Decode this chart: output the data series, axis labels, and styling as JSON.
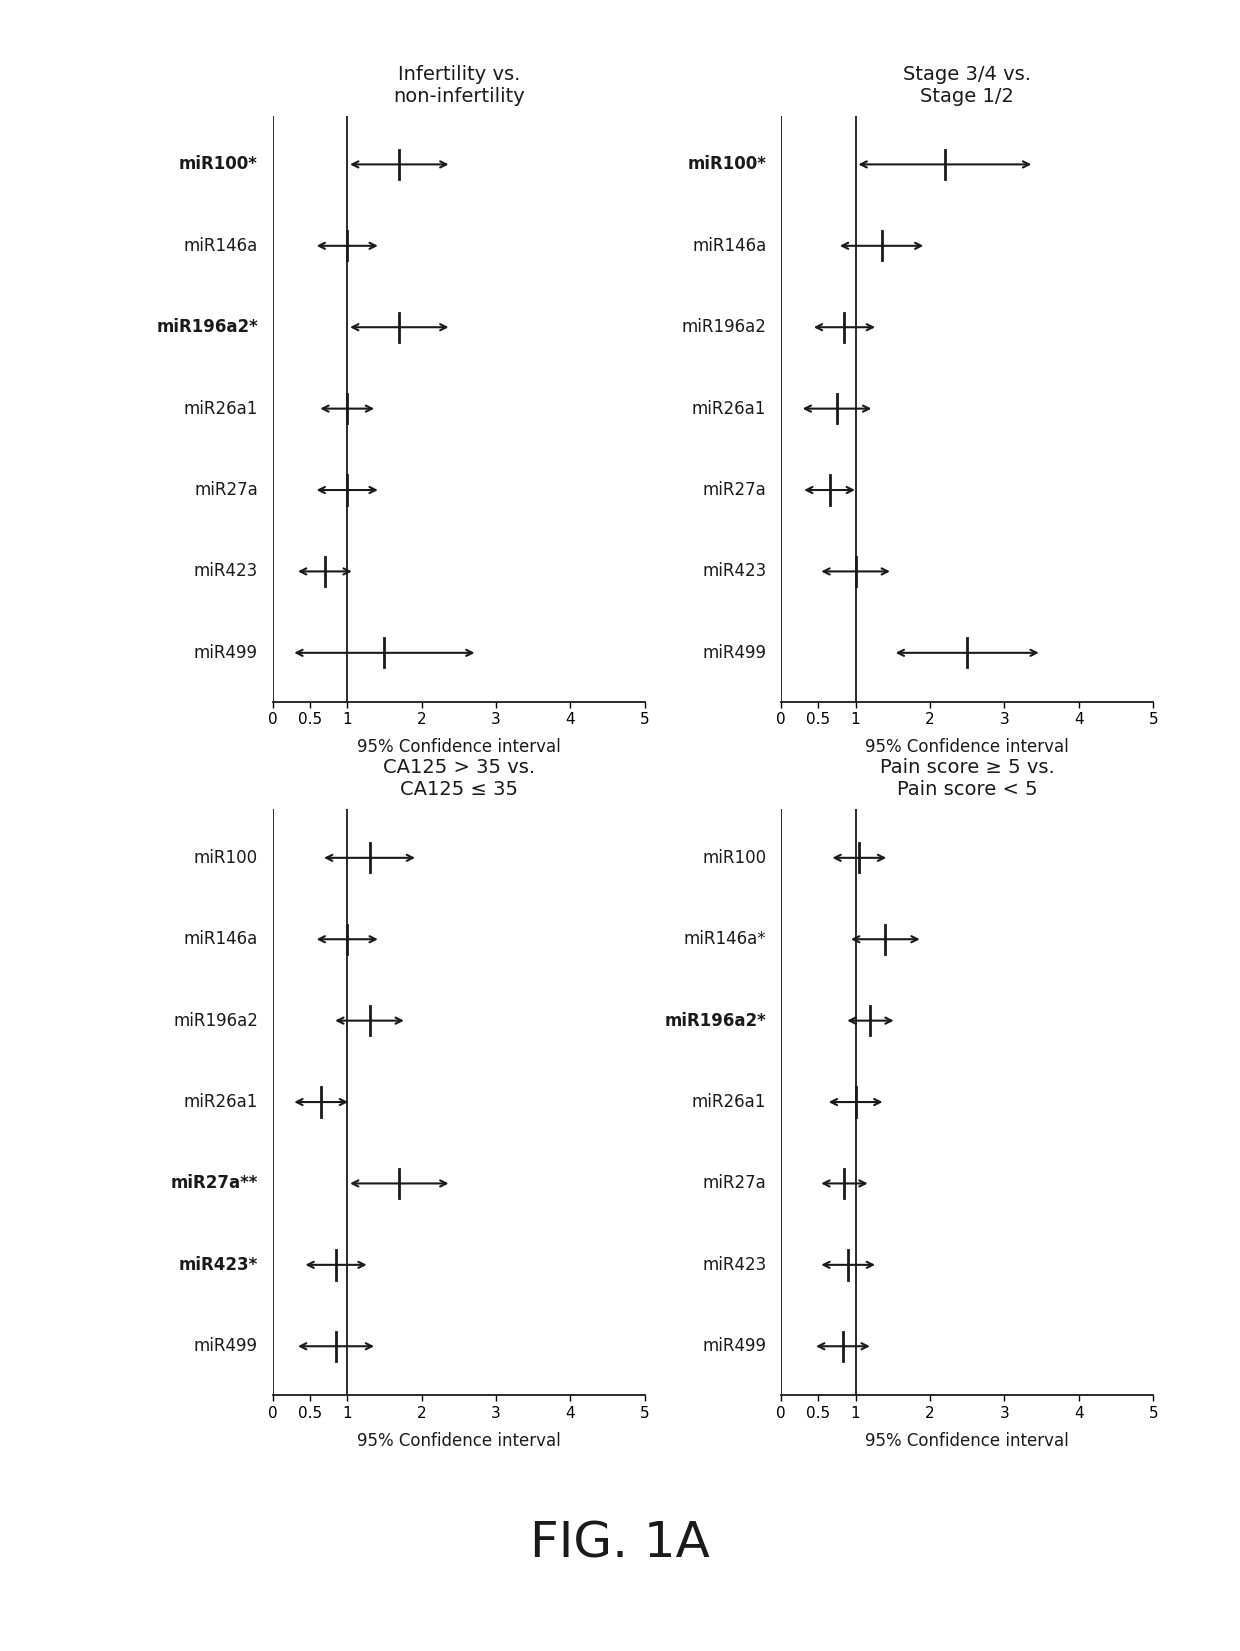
{
  "panels": [
    {
      "title": "Infertility vs.\nnon-infertility",
      "genes": [
        "miR100*",
        "miR146a",
        "miR196a2*",
        "miR26a1",
        "miR27a",
        "miR423",
        "miR499"
      ],
      "bold": [
        true,
        false,
        true,
        false,
        false,
        false,
        false
      ],
      "centers": [
        1.7,
        1.0,
        1.7,
        1.0,
        1.0,
        0.7,
        1.5
      ],
      "lo": [
        1.0,
        0.55,
        1.0,
        0.6,
        0.55,
        0.3,
        0.25
      ],
      "hi": [
        2.4,
        1.45,
        2.4,
        1.4,
        1.45,
        1.1,
        2.75
      ],
      "ref_line": 1.0,
      "xlim": [
        0,
        5
      ],
      "xticks": [
        0,
        0.5,
        1,
        2,
        3,
        4,
        5
      ],
      "xlabel": "95% Confidence interval"
    },
    {
      "title": "Stage 3/4 vs.\nStage 1/2",
      "genes": [
        "miR100*",
        "miR146a",
        "miR196a2",
        "miR26a1",
        "miR27a",
        "miR423",
        "miR499"
      ],
      "bold": [
        true,
        false,
        false,
        false,
        false,
        false,
        false
      ],
      "centers": [
        2.2,
        1.35,
        0.85,
        0.75,
        0.65,
        1.0,
        2.5
      ],
      "lo": [
        1.0,
        0.75,
        0.4,
        0.25,
        0.27,
        0.5,
        1.5
      ],
      "hi": [
        3.4,
        1.95,
        1.3,
        1.25,
        1.03,
        1.5,
        3.5
      ],
      "ref_line": 1.0,
      "xlim": [
        0,
        5
      ],
      "xticks": [
        0,
        0.5,
        1,
        2,
        3,
        4,
        5
      ],
      "xlabel": "95% Confidence interval"
    },
    {
      "title": "CA125 > 35 vs.\nCA125 ≤ 35",
      "genes": [
        "miR100",
        "miR146a",
        "miR196a2",
        "miR26a1",
        "miR27a**",
        "miR423*",
        "miR499"
      ],
      "bold": [
        false,
        false,
        false,
        false,
        true,
        true,
        false
      ],
      "centers": [
        1.3,
        1.0,
        1.3,
        0.65,
        1.7,
        0.85,
        0.85
      ],
      "lo": [
        0.65,
        0.55,
        0.8,
        0.25,
        1.0,
        0.4,
        0.3
      ],
      "hi": [
        1.95,
        1.45,
        1.8,
        1.05,
        2.4,
        1.3,
        1.4
      ],
      "ref_line": 1.0,
      "xlim": [
        0,
        5
      ],
      "xticks": [
        0,
        0.5,
        1,
        2,
        3,
        4,
        5
      ],
      "xlabel": "95% Confidence interval"
    },
    {
      "title": "Pain score ≥ 5 vs.\nPain score < 5",
      "genes": [
        "miR100",
        "miR146a*",
        "miR196a2*",
        "miR26a1",
        "miR27a",
        "miR423",
        "miR499"
      ],
      "bold": [
        false,
        false,
        true,
        false,
        false,
        false,
        false
      ],
      "centers": [
        1.05,
        1.4,
        1.2,
        1.0,
        0.85,
        0.9,
        0.83
      ],
      "lo": [
        0.65,
        0.9,
        0.85,
        0.6,
        0.5,
        0.5,
        0.43
      ],
      "hi": [
        1.45,
        1.9,
        1.55,
        1.4,
        1.2,
        1.3,
        1.23
      ],
      "ref_line": 1.0,
      "xlim": [
        0,
        5
      ],
      "xticks": [
        0,
        0.5,
        1,
        2,
        3,
        4,
        5
      ],
      "xlabel": "95% Confidence interval"
    }
  ],
  "figure_label": "FIG. 1A",
  "bg_color": "#ffffff",
  "plot_bg_color": "#ffffff",
  "text_color": "#1a1a1a",
  "line_color": "#1a1a1a",
  "arrow_color": "#1a1a1a",
  "gene_label_fontsize": 12,
  "title_fontsize": 14,
  "xlabel_fontsize": 12,
  "tick_fontsize": 11
}
